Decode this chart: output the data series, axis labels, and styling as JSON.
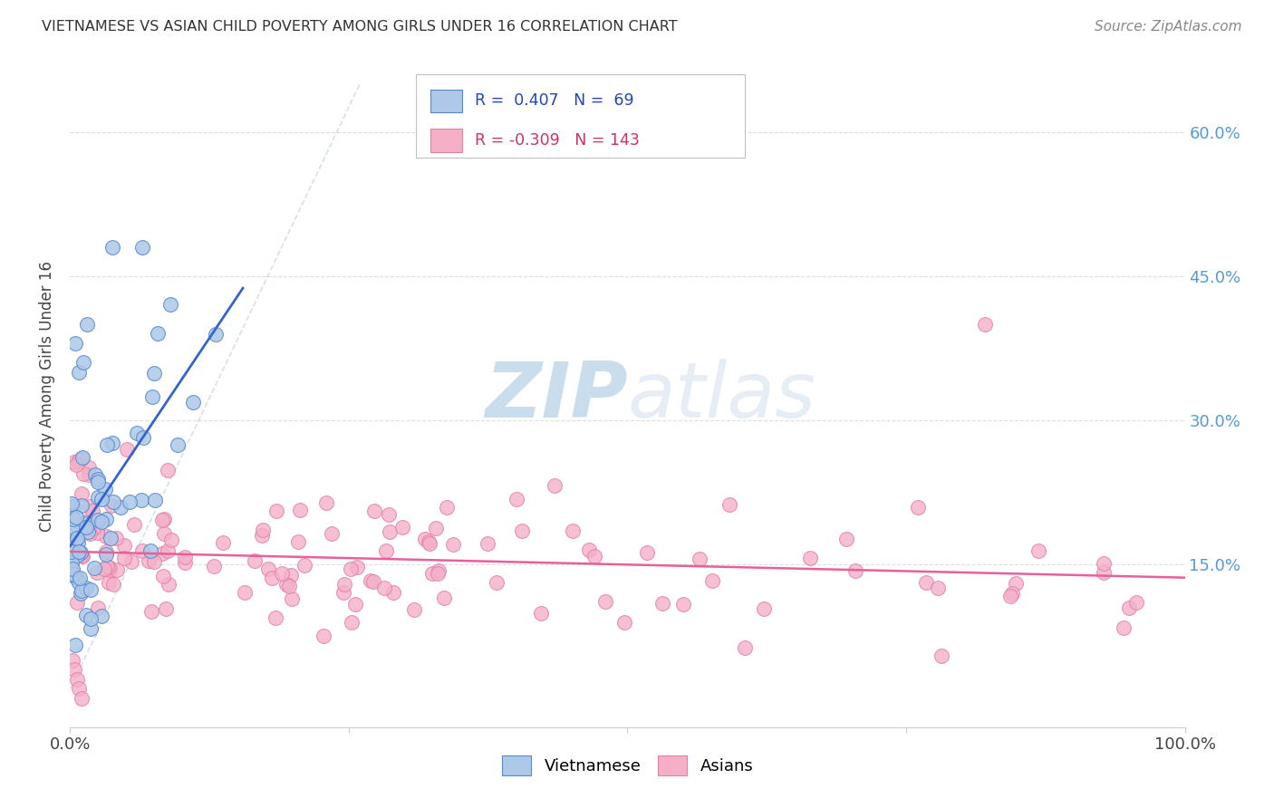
{
  "title": "VIETNAMESE VS ASIAN CHILD POVERTY AMONG GIRLS UNDER 16 CORRELATION CHART",
  "source": "Source: ZipAtlas.com",
  "ylabel": "Child Poverty Among Girls Under 16",
  "viet_color": "#adc8e8",
  "viet_edge_color": "#5588cc",
  "viet_line_color": "#3366cc",
  "asian_color": "#f5b0c8",
  "asian_edge_color": "#e080a8",
  "asian_line_color": "#e8609a",
  "watermark_color": "#d0dff0",
  "background_color": "#ffffff",
  "grid_color": "#cccccc",
  "title_color": "#333333",
  "right_ytick_color": "#5599dd",
  "legend_r_viet": "0.407",
  "legend_n_viet": "69",
  "legend_r_asian": "-0.309",
  "legend_n_asian": "143"
}
